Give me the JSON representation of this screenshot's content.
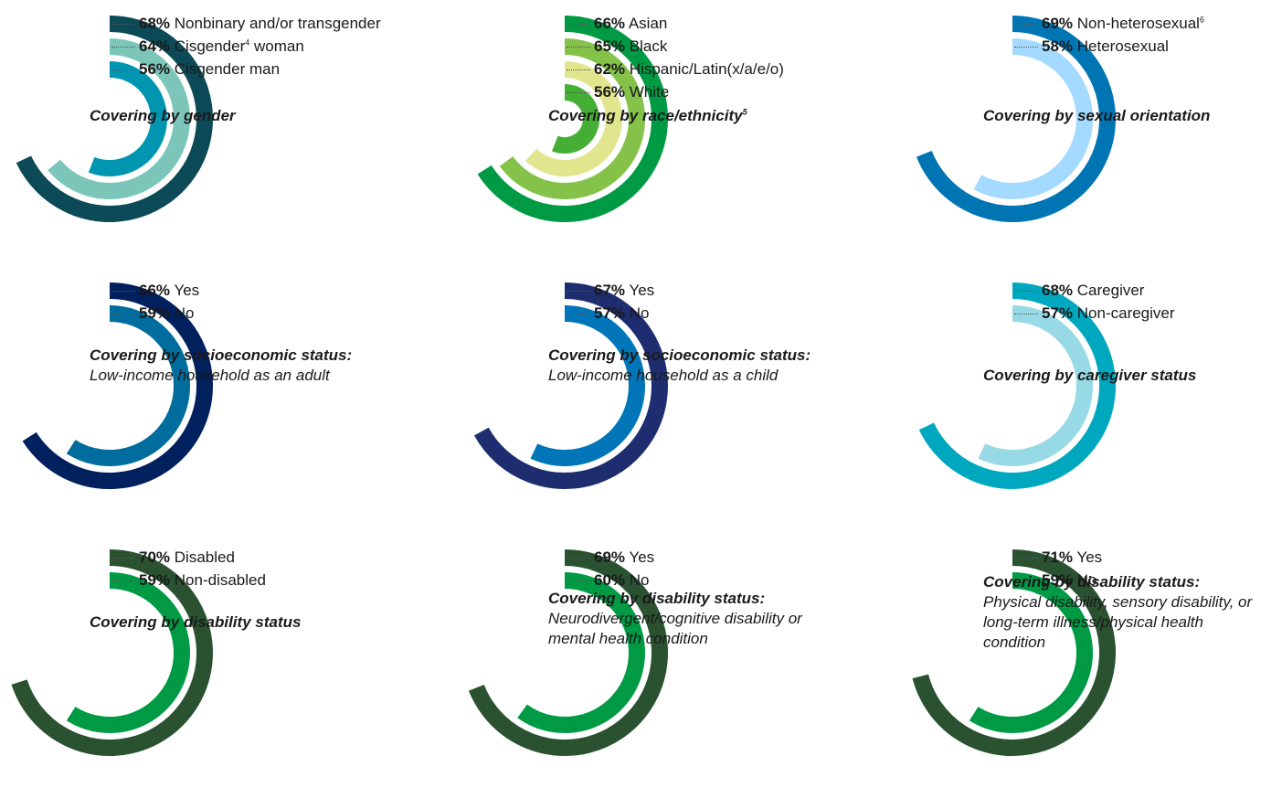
{
  "chart_data": [
    {
      "type": "radial-bar",
      "title": "Covering by gender",
      "title_footnote": "",
      "subtitle": "",
      "series": [
        {
          "name": "Nonbinary and/or transgender",
          "footnote": "",
          "value": 68,
          "label": "68%",
          "color": "#0b4a56"
        },
        {
          "name": "Cisgender",
          "footnote": "4",
          "name_suffix": " woman",
          "value": 64,
          "label": "64%",
          "color": "#7cc6b9"
        },
        {
          "name": "Cisgender man",
          "footnote": "",
          "value": 56,
          "label": "56%",
          "color": "#0096b2"
        }
      ]
    },
    {
      "type": "radial-bar",
      "title": "Covering by race/ethnicity",
      "title_footnote": "5",
      "subtitle": "",
      "series": [
        {
          "name": "Asian",
          "footnote": "",
          "value": 66,
          "label": "66%",
          "color": "#009a44"
        },
        {
          "name": "Black",
          "footnote": "",
          "value": 65,
          "label": "65%",
          "color": "#84c24a"
        },
        {
          "name": "Hispanic/Latin(x/a/e/o)",
          "footnote": "",
          "value": 62,
          "label": "62%",
          "color": "#e1e58e"
        },
        {
          "name": "White",
          "footnote": "",
          "value": 56,
          "label": "56%",
          "color": "#45ae35"
        }
      ]
    },
    {
      "type": "radial-bar",
      "title": "Covering by sexual orientation",
      "title_footnote": "",
      "subtitle": "",
      "series": [
        {
          "name": "Non-heterosexual",
          "footnote": "6",
          "value": 69,
          "label": "69%",
          "color": "#0075b4"
        },
        {
          "name": "Heterosexual",
          "footnote": "",
          "value": 58,
          "label": "58%",
          "color": "#a4daff"
        }
      ]
    },
    {
      "type": "radial-bar",
      "title": "Covering by socioeconomic status:",
      "title_footnote": "",
      "subtitle": "Low-income household as an adult",
      "series": [
        {
          "name": "Yes",
          "footnote": "",
          "value": 66,
          "label": "66%",
          "color": "#00205e"
        },
        {
          "name": "No",
          "footnote": "",
          "value": 59,
          "label": "59%",
          "color": "#006d9e"
        }
      ]
    },
    {
      "type": "radial-bar",
      "title": "Covering by socioeconomic status:",
      "title_footnote": "",
      "subtitle": "Low-income household as a child",
      "series": [
        {
          "name": "Yes",
          "footnote": "",
          "value": 67,
          "label": "67%",
          "color": "#1d2d6f"
        },
        {
          "name": "No",
          "footnote": "",
          "value": 57,
          "label": "57%",
          "color": "#0075b8"
        }
      ]
    },
    {
      "type": "radial-bar",
      "title": "Covering by caregiver status",
      "title_footnote": "",
      "subtitle": "",
      "series": [
        {
          "name": "Caregiver",
          "footnote": "",
          "value": 68,
          "label": "68%",
          "color": "#00a8bf"
        },
        {
          "name": "Non-caregiver",
          "footnote": "",
          "value": 57,
          "label": "57%",
          "color": "#97d9e4"
        }
      ]
    },
    {
      "type": "radial-bar",
      "title": "Covering by disability status",
      "title_footnote": "",
      "subtitle": "",
      "series": [
        {
          "name": "Disabled",
          "footnote": "",
          "value": 70,
          "label": "70%",
          "color": "#2a5230"
        },
        {
          "name": "Non-disabled",
          "footnote": "",
          "value": 59,
          "label": "59%",
          "color": "#009a44"
        }
      ]
    },
    {
      "type": "radial-bar",
      "title": "Covering by disability status:",
      "title_footnote": "",
      "subtitle": "Neurodivergent/cognitive disability or mental health condition",
      "series": [
        {
          "name": "Yes",
          "footnote": "",
          "value": 69,
          "label": "69%",
          "color": "#2a5230"
        },
        {
          "name": "No",
          "footnote": "",
          "value": 60,
          "label": "60%",
          "color": "#009a44"
        }
      ]
    },
    {
      "type": "radial-bar",
      "title": "Covering by disability status:",
      "title_footnote": "",
      "subtitle": "Physical disability, sensory disability, or long-term illness/physical health condition",
      "series": [
        {
          "name": "Yes",
          "footnote": "",
          "value": 71,
          "label": "71%",
          "color": "#2a5230"
        },
        {
          "name": "No",
          "footnote": "",
          "value": 59,
          "label": "59%",
          "color": "#009a44"
        }
      ]
    }
  ]
}
